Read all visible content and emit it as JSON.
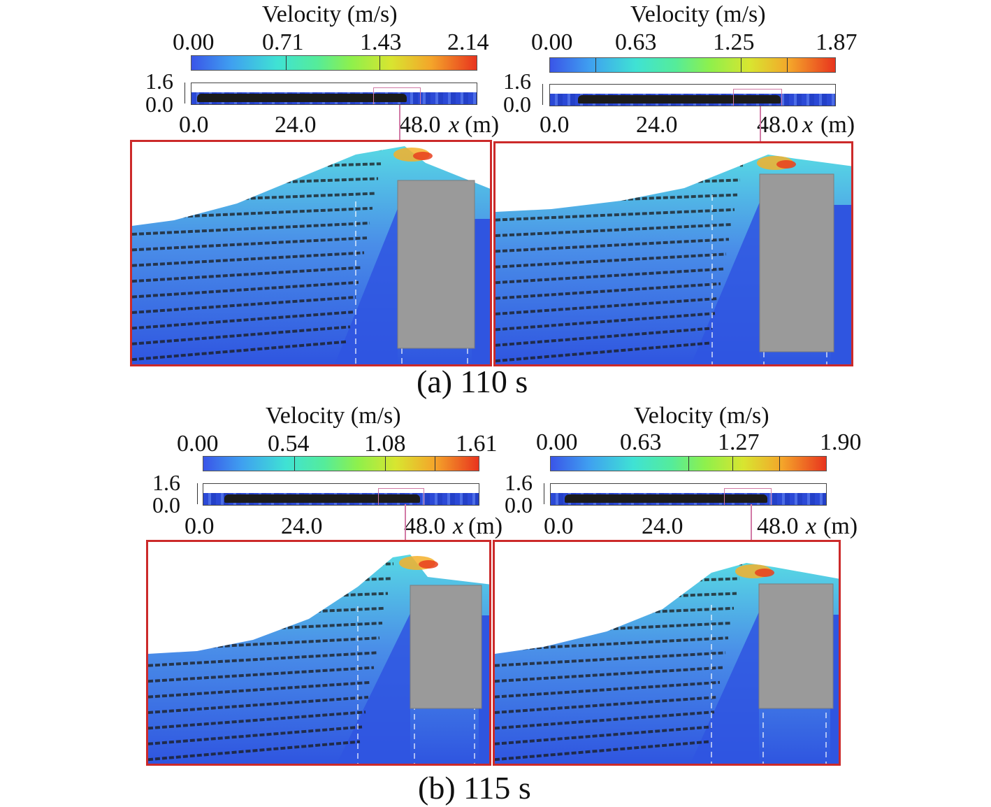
{
  "colorbar_title": "Velocity (m/s)",
  "colors": {
    "frame": "#cc2a2a",
    "water_deep": "#2f55e0",
    "water_light": "#57d8e4",
    "structure": "#9a9a9a",
    "arrows": "#1a1a1a",
    "inset_box": "#d27aa6"
  },
  "axis": {
    "y_top": "1.6",
    "y_bottom": "0.0",
    "x_ticks": [
      "0.0",
      "24.0",
      "48.0"
    ],
    "x_label_var": "x",
    "x_label_unit": "(m)"
  },
  "groups": [
    {
      "caption": "(a) 110 s",
      "panels": [
        {
          "colorbar_ticks": [
            "0.00",
            "0.71",
            "1.43",
            "2.14"
          ]
        },
        {
          "colorbar_ticks": [
            "0.00",
            "0.63",
            "1.25",
            "1.87"
          ]
        }
      ]
    },
    {
      "caption": "(b) 115 s",
      "panels": [
        {
          "colorbar_ticks": [
            "0.00",
            "0.54",
            "1.08",
            "1.61"
          ]
        },
        {
          "colorbar_ticks": [
            "0.00",
            "0.63",
            "1.27",
            "1.90"
          ]
        }
      ]
    }
  ]
}
